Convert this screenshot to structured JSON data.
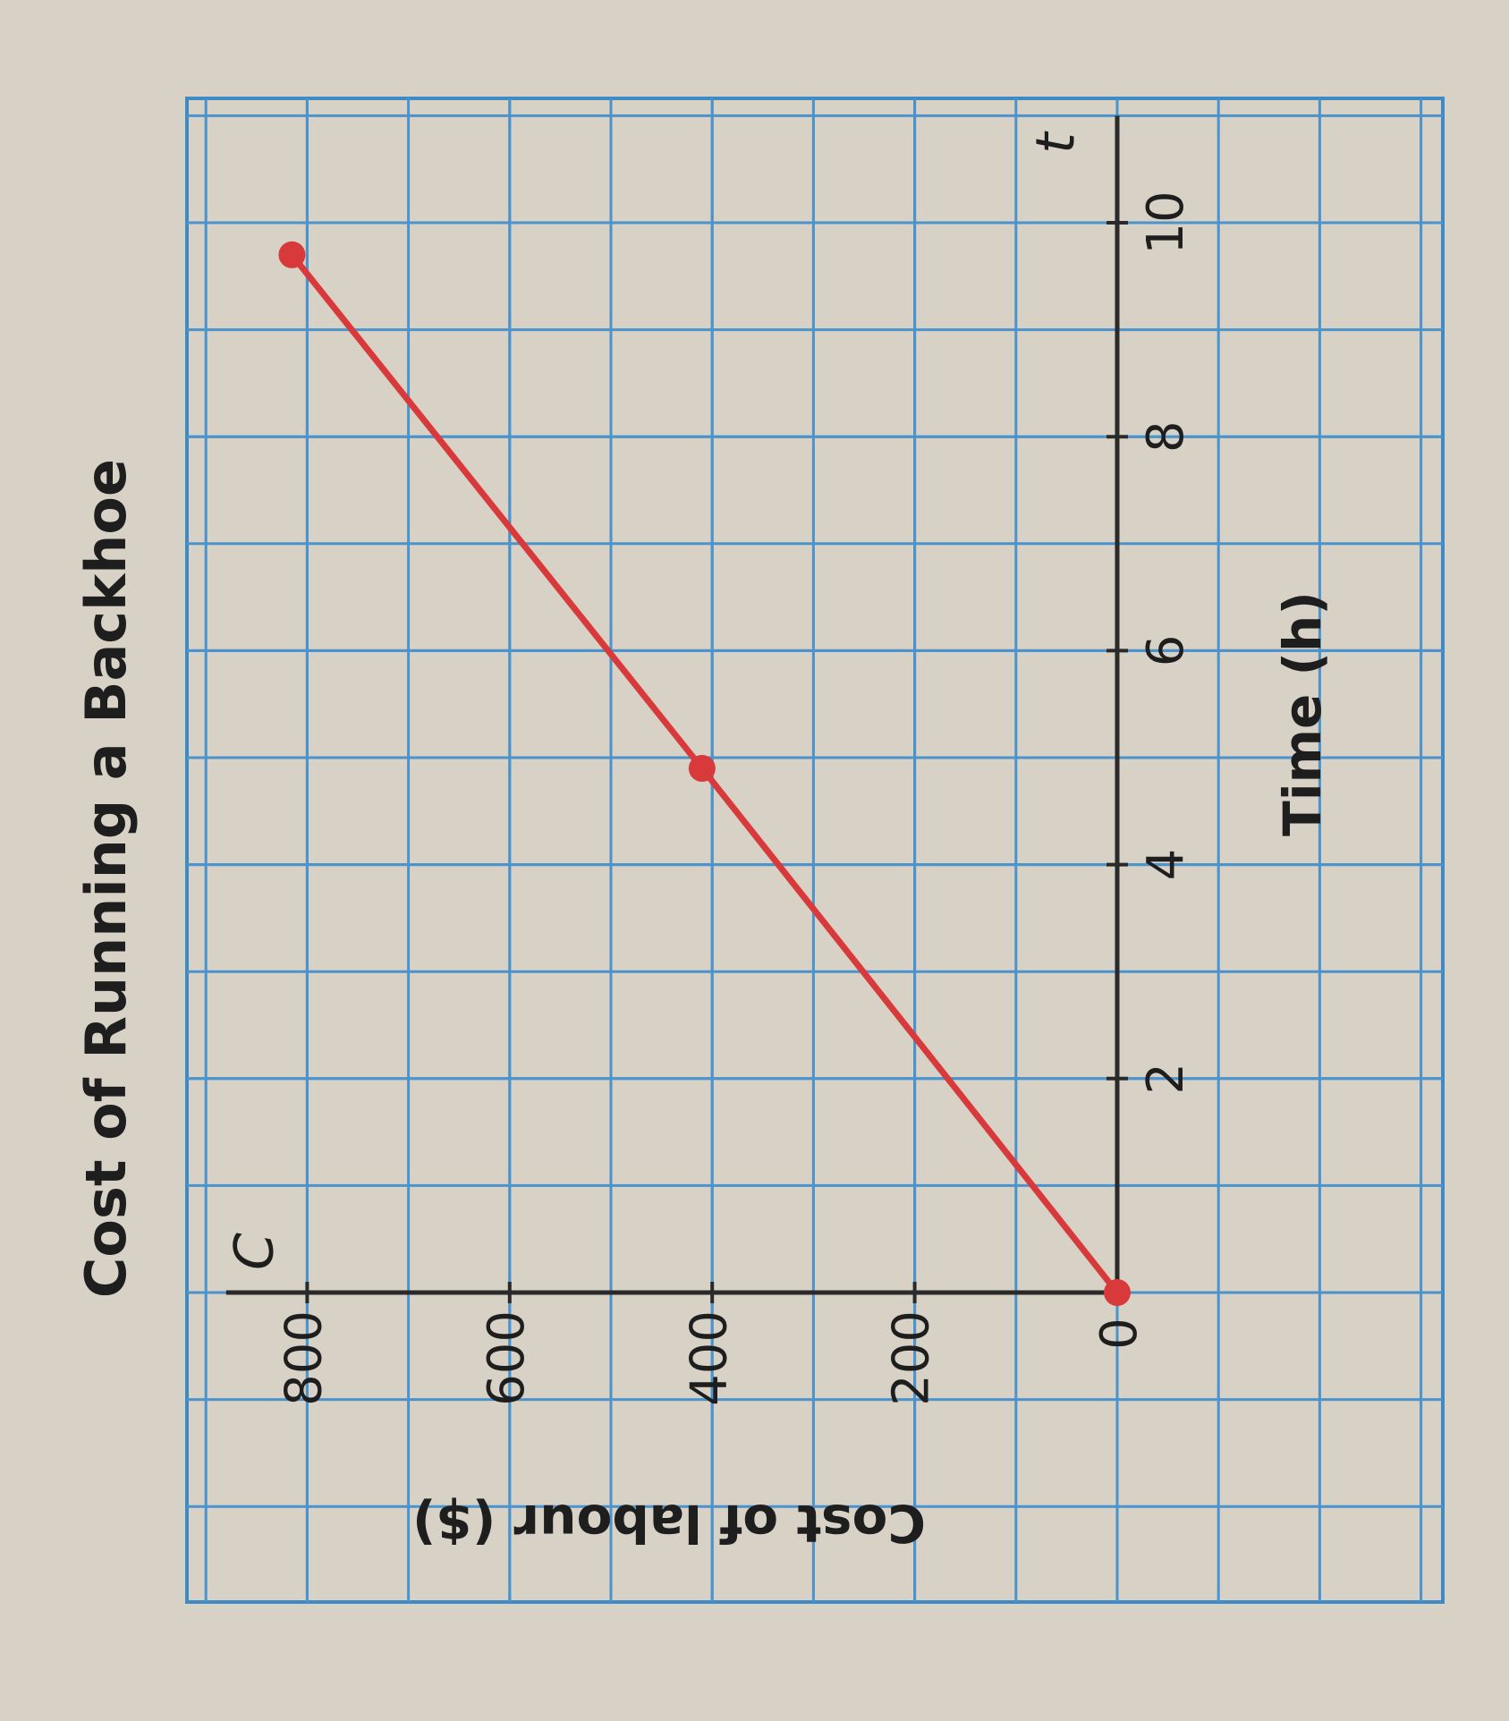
{
  "chart_data": {
    "type": "line",
    "title": "Cost of Running a Backhoe",
    "x_label": "Time (h)",
    "y_label": "Cost of labour ($)",
    "x_axis_symbol": "t",
    "y_axis_symbol": "C",
    "x": [
      0,
      4.9,
      9.7
    ],
    "values": [
      0,
      410,
      815
    ],
    "color": "#d8393b",
    "xlim": [
      0,
      11
    ],
    "ylim": [
      0,
      880
    ],
    "xticks": [
      0,
      2,
      4,
      6,
      8,
      10
    ],
    "yticks": [
      200,
      400,
      600,
      800
    ],
    "grid": true
  }
}
